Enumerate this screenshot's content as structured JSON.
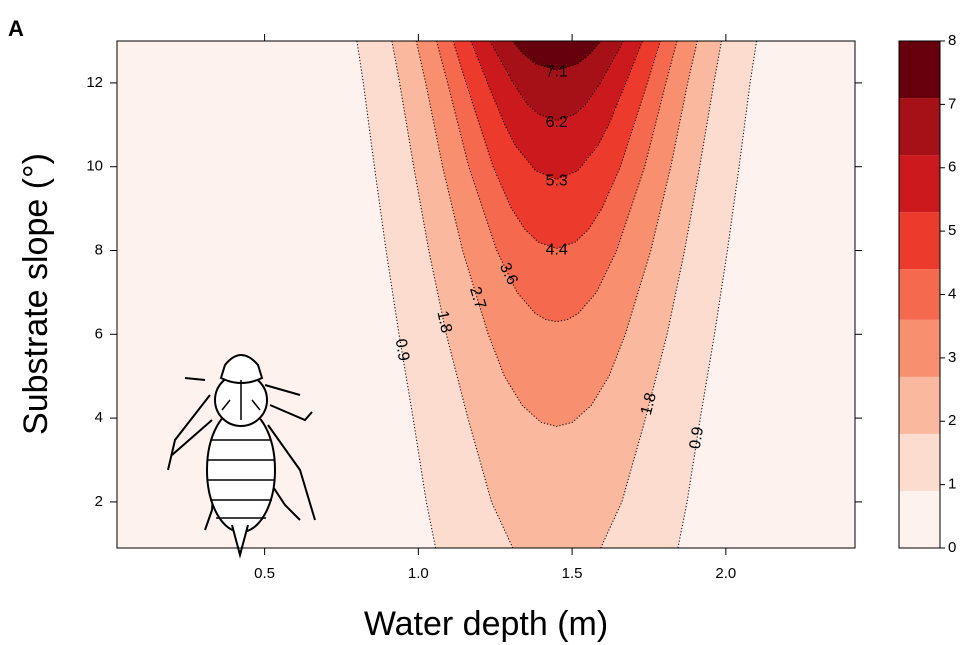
{
  "chart_data": {
    "type": "contour",
    "panel_label": "A",
    "xlabel": "Water depth (m)",
    "ylabel": "Substrate slope (°)",
    "xlim": [
      0.02,
      2.42
    ],
    "ylim": [
      0.9,
      13
    ],
    "xticks": [
      0.5,
      {
        "value": 1,
        "label": "1.0"
      },
      1.5,
      {
        "value": 2,
        "label": "2.0"
      }
    ],
    "yticks": [
      2,
      4,
      6,
      8,
      10,
      12
    ],
    "colorbar": {
      "lim": [
        0,
        8
      ],
      "ticks": [
        0,
        1,
        2,
        3,
        4,
        5,
        6,
        7,
        8
      ],
      "levels": [
        0,
        0.9,
        1.8,
        2.7,
        3.6,
        4.4,
        5.3,
        6.2,
        7.1,
        8
      ],
      "colors": [
        "#fdf2ee",
        "#fbdccf",
        "#fab89f",
        "#f8906f",
        "#f56a4e",
        "#ec3b2d",
        "#cc191e",
        "#a51117",
        "#67000d"
      ]
    },
    "contours": [
      {
        "level": 0.9,
        "x": [
          0.8,
          0.821,
          0.857,
          0.895,
          0.937,
          0.983,
          1.026,
          1.056,
          null,
          1.844,
          1.874,
          1.917,
          1.963,
          2.005,
          2.043,
          2.079,
          2.1
        ],
        "y": [
          13,
          12,
          10,
          8,
          6,
          4,
          2,
          0.9,
          null,
          0.9,
          2,
          4,
          6,
          8,
          10,
          12,
          13
        ]
      },
      {
        "level": 1.8,
        "x": [
          0.914,
          0.939,
          0.985,
          1.034,
          1.091,
          1.161,
          1.238,
          1.307,
          null,
          1.593,
          1.662,
          1.739,
          1.809,
          1.866,
          1.915,
          1.961,
          1.986
        ],
        "y": [
          13,
          12,
          10,
          8,
          6,
          4,
          2,
          0.9,
          null,
          0.9,
          2,
          4,
          6,
          8,
          10,
          12,
          13
        ]
      },
      {
        "level": 2.7,
        "x": [
          0.993,
          1.024,
          1.079,
          1.144,
          1.227,
          1.28,
          1.338,
          1.399,
          1.45,
          1.501,
          1.562,
          1.62,
          1.673,
          1.756,
          1.821,
          1.876,
          1.907
        ],
        "y": [
          13,
          12,
          10,
          8,
          6,
          5,
          4.3,
          3.9,
          3.8,
          3.9,
          4.3,
          5,
          6,
          8,
          10,
          12,
          13
        ]
      },
      {
        "level": 3.6,
        "x": [
          1.059,
          1.095,
          1.164,
          1.255,
          1.321,
          1.38,
          1.415,
          1.45,
          1.485,
          1.52,
          1.579,
          1.645,
          1.736,
          1.805,
          1.841
        ],
        "y": [
          13,
          12,
          10,
          8,
          7,
          6.5,
          6.35,
          6.3,
          6.35,
          6.5,
          7,
          8,
          10,
          12,
          13
        ]
      },
      {
        "level": 4.4,
        "x": [
          1.113,
          1.155,
          1.243,
          1.303,
          1.347,
          1.39,
          1.45,
          1.51,
          1.553,
          1.597,
          1.657,
          1.745,
          1.787
        ],
        "y": [
          13,
          12,
          10,
          9,
          8.5,
          8.2,
          8.05,
          8.2,
          8.5,
          9,
          10,
          12,
          13
        ]
      },
      {
        "level": 5.3,
        "x": [
          1.171,
          1.225,
          1.281,
          1.316,
          1.382,
          1.45,
          1.518,
          1.584,
          1.619,
          1.675,
          1.729
        ],
        "y": [
          13,
          12,
          11,
          10.5,
          9.9,
          9.7,
          9.9,
          10.5,
          11,
          12,
          13
        ]
      },
      {
        "level": 6.2,
        "x": [
          1.233,
          1.308,
          1.354,
          1.391,
          1.45,
          1.509,
          1.546,
          1.592,
          1.667
        ],
        "y": [
          13,
          12,
          11.5,
          11.25,
          11.1,
          11.25,
          11.5,
          12,
          13
        ]
      },
      {
        "level": 7.1,
        "x": [
          1.306,
          1.34,
          1.382,
          1.45,
          1.518,
          1.56,
          1.594
        ],
        "y": [
          13,
          12.7,
          12.45,
          12.3,
          12.45,
          12.7,
          13
        ]
      }
    ]
  }
}
